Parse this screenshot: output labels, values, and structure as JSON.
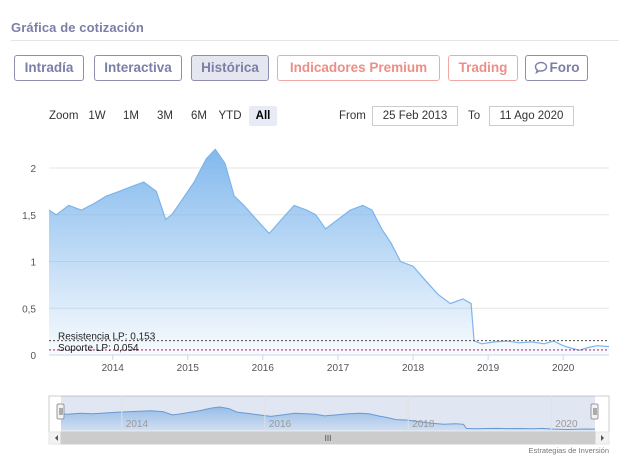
{
  "section_title": "Gráfica de cotización",
  "tabs": [
    {
      "label": "Intradía",
      "active": false,
      "premium": false
    },
    {
      "label": "Interactiva",
      "active": false,
      "premium": false
    },
    {
      "label": "Histórica",
      "active": true,
      "premium": false
    },
    {
      "label": "Indicadores Premium",
      "active": false,
      "premium": true
    },
    {
      "label": "Trading",
      "active": false,
      "premium": true
    },
    {
      "label": "Foro",
      "active": false,
      "premium": false,
      "icon": "speech-bubble-icon"
    }
  ],
  "zoom": {
    "label": "Zoom",
    "buttons": [
      "1W",
      "1M",
      "3M",
      "6M",
      "YTD",
      "All"
    ],
    "selected": "All"
  },
  "range": {
    "from_label": "From",
    "from_value": "25 Feb 2013",
    "to_label": "To",
    "to_value": "11 Ago 2020"
  },
  "credit": "Estrategias de Inversión",
  "colors": {
    "line": "#7cb5ec",
    "fill_top": "#7cb5ec",
    "resistance": "#333333",
    "support": "#a0004a",
    "accent": "#7b7fa6",
    "premium": "#ec8f87"
  },
  "chart_data": {
    "type": "area",
    "title": "",
    "xlabel": "",
    "ylabel": "",
    "ylim": [
      0,
      2.3
    ],
    "xlim": [
      "2013-02-25",
      "2020-08-11"
    ],
    "y_ticks": [
      "0",
      "0,5",
      "1",
      "1,5",
      "2"
    ],
    "x_ticks": [
      "2014",
      "2015",
      "2016",
      "2017",
      "2018",
      "2019",
      "2020"
    ],
    "grid": true,
    "series": [
      {
        "points": [
          [
            "2013-02-25",
            1.55
          ],
          [
            "2013-04-01",
            1.5
          ],
          [
            "2013-06-01",
            1.6
          ],
          [
            "2013-08-01",
            1.55
          ],
          [
            "2013-10-01",
            1.62
          ],
          [
            "2013-12-01",
            1.7
          ],
          [
            "2014-02-01",
            1.75
          ],
          [
            "2014-04-01",
            1.8
          ],
          [
            "2014-06-01",
            1.85
          ],
          [
            "2014-08-01",
            1.75
          ],
          [
            "2014-09-15",
            1.45
          ],
          [
            "2014-10-15",
            1.5
          ],
          [
            "2014-12-01",
            1.65
          ],
          [
            "2015-02-01",
            1.85
          ],
          [
            "2015-04-01",
            2.1
          ],
          [
            "2015-05-15",
            2.2
          ],
          [
            "2015-07-01",
            2.05
          ],
          [
            "2015-08-15",
            1.7
          ],
          [
            "2015-10-01",
            1.6
          ],
          [
            "2015-12-01",
            1.45
          ],
          [
            "2016-02-01",
            1.3
          ],
          [
            "2016-04-01",
            1.45
          ],
          [
            "2016-06-01",
            1.6
          ],
          [
            "2016-08-01",
            1.55
          ],
          [
            "2016-09-15",
            1.5
          ],
          [
            "2016-11-01",
            1.35
          ],
          [
            "2017-01-01",
            1.45
          ],
          [
            "2017-03-01",
            1.55
          ],
          [
            "2017-05-01",
            1.6
          ],
          [
            "2017-06-15",
            1.55
          ],
          [
            "2017-08-01",
            1.35
          ],
          [
            "2017-09-15",
            1.2
          ],
          [
            "2017-11-01",
            1.0
          ],
          [
            "2018-01-01",
            0.95
          ],
          [
            "2018-03-01",
            0.8
          ],
          [
            "2018-05-01",
            0.65
          ],
          [
            "2018-07-01",
            0.55
          ],
          [
            "2018-09-01",
            0.6
          ],
          [
            "2018-10-10",
            0.55
          ],
          [
            "2018-10-25",
            0.15
          ],
          [
            "2018-12-01",
            0.12
          ],
          [
            "2019-02-01",
            0.14
          ],
          [
            "2019-04-01",
            0.15
          ],
          [
            "2019-06-01",
            0.13
          ],
          [
            "2019-08-01",
            0.14
          ],
          [
            "2019-10-01",
            0.12
          ],
          [
            "2019-11-15",
            0.15
          ],
          [
            "2020-01-01",
            0.1
          ],
          [
            "2020-02-15",
            0.07
          ],
          [
            "2020-03-20",
            0.05
          ],
          [
            "2020-05-01",
            0.08
          ],
          [
            "2020-06-15",
            0.1
          ],
          [
            "2020-08-11",
            0.09
          ]
        ]
      }
    ],
    "annotations": [
      {
        "label": "Resistencia LP: 0,153",
        "y": 0.153
      },
      {
        "label": "Soporte LP: 0,054",
        "y": 0.054
      }
    ],
    "navigator": {
      "x_ticks": [
        "2014",
        "2016",
        "2018",
        "2020"
      ],
      "scrollbar_grip": "III"
    }
  }
}
